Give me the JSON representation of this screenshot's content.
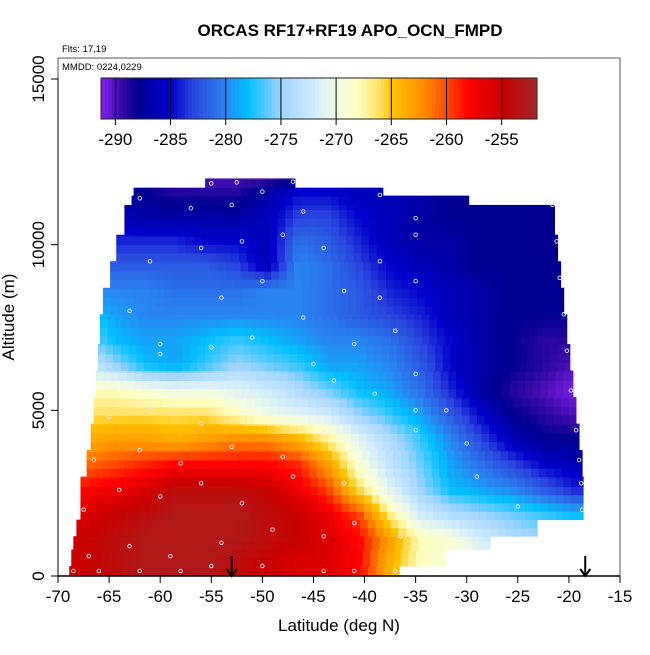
{
  "chart_data": {
    "type": "heatmap",
    "title": "ORCAS RF17+RF19 APO_OCN_FMPD",
    "flights_label": "Flts: 17,19",
    "dates_label": "MMDD: 0224,0229",
    "xlabel": "Latitude (deg N)",
    "ylabel": "Altitude (m)",
    "xlim": [
      -70,
      -15
    ],
    "ylim": [
      0,
      15000
    ],
    "xticks": [
      -70,
      -65,
      -60,
      -55,
      -50,
      -45,
      -40,
      -35,
      -30,
      -25,
      -20,
      -15
    ],
    "xtick_labels": [
      "-70",
      "-65",
      "-60",
      "-55",
      "-50",
      "-45",
      "-40",
      "-35",
      "-30",
      "-25",
      "-20",
      "-15"
    ],
    "yticks": [
      0,
      5000,
      10000,
      15000
    ],
    "ytick_labels": [
      "0",
      "5000",
      "10000",
      "15000"
    ],
    "colorbar": {
      "range": [
        -291.3,
        -251.8
      ],
      "ticks": [
        -290,
        -285,
        -280,
        -275,
        -270,
        -265,
        -260,
        -255
      ],
      "tick_labels": [
        "-290",
        "-285",
        "-280",
        "-275",
        "-270",
        "-265",
        "-260",
        "-255"
      ],
      "stops": [
        [
          -291,
          "#7b1fe8"
        ],
        [
          -289.5,
          "#3a0aa8"
        ],
        [
          -288,
          "#000090"
        ],
        [
          -285,
          "#0000cc"
        ],
        [
          -283,
          "#2a45dd"
        ],
        [
          -280,
          "#2a85f0"
        ],
        [
          -278,
          "#00bfff"
        ],
        [
          -275,
          "#a0d4ff"
        ],
        [
          -272,
          "#d0ecfc"
        ],
        [
          -270,
          "#f0fbe8"
        ],
        [
          -268,
          "#ffffc0"
        ],
        [
          -266,
          "#ffe060"
        ],
        [
          -265,
          "#ffc400"
        ],
        [
          -262,
          "#ff8c00"
        ],
        [
          -260,
          "#ff4a00"
        ],
        [
          -258,
          "#ff0000"
        ],
        [
          -255,
          "#c80000"
        ],
        [
          -252,
          "#a52525"
        ]
      ]
    },
    "grid_lats": [
      -67.5,
      -64.5,
      -61.5,
      -58.5,
      -55.5,
      -52.5,
      -49.5,
      -46.5,
      -43.5,
      -40.5,
      -37.5,
      -34.5,
      -31.5,
      -28.5,
      -25.5,
      -22.5,
      -19.5
    ],
    "grid_alts": [
      375,
      1125,
      1875,
      2625,
      3375,
      4125,
      4875,
      5625,
      6375,
      7125,
      7875,
      8625,
      9375,
      10125,
      10875,
      11625,
      12000
    ],
    "values": [
      [
        -255,
        -254,
        -253,
        -253,
        -253,
        -254,
        -255,
        -256,
        -256,
        -258,
        -264,
        -268,
        -269,
        -270,
        -271,
        -272,
        -273
      ],
      [
        -255,
        -254,
        -253,
        -253,
        -253,
        -253,
        -254,
        -255,
        -256,
        -258,
        -263,
        -268,
        -269,
        -272,
        -274,
        -275,
        -276
      ],
      [
        -256,
        -255,
        -254,
        -253,
        -253,
        -253,
        -254,
        -255,
        -257,
        -260,
        -267,
        -272,
        -274,
        -275,
        -276,
        -277,
        -278
      ],
      [
        -258,
        -257,
        -256,
        -254,
        -254,
        -254,
        -255,
        -257,
        -260,
        -266,
        -271,
        -275,
        -278,
        -279,
        -280,
        -282,
        -284
      ],
      [
        -261,
        -260,
        -259,
        -258,
        -258,
        -258,
        -258,
        -259,
        -263,
        -269,
        -273,
        -276,
        -279,
        -281,
        -283,
        -285,
        -286
      ],
      [
        -264,
        -263,
        -263,
        -264,
        -263,
        -262,
        -262,
        -264,
        -267,
        -271,
        -274,
        -277,
        -280,
        -283,
        -286,
        -288,
        -288
      ],
      [
        -266,
        -266,
        -266,
        -266,
        -266,
        -268,
        -270,
        -271,
        -272,
        -275,
        -277,
        -279,
        -282,
        -285,
        -288,
        -289,
        -290
      ],
      [
        -268,
        -268,
        -269,
        -270,
        -270,
        -271,
        -272,
        -274,
        -276,
        -278,
        -279,
        -281,
        -284,
        -287,
        -289,
        -290,
        -291
      ],
      [
        -272,
        -275,
        -278,
        -279,
        -277,
        -275,
        -276,
        -277,
        -279,
        -279,
        -280,
        -282,
        -285,
        -287,
        -288,
        -289,
        -290
      ],
      [
        -275,
        -278,
        -279,
        -279,
        -278,
        -277,
        -278,
        -279,
        -280,
        -280,
        -281,
        -283,
        -285,
        -287,
        -288,
        -289,
        -289
      ],
      [
        -277,
        -279,
        -280,
        -280,
        -280,
        -280,
        -280,
        -280,
        -281,
        -282,
        -283,
        -284,
        -286,
        -287,
        -288,
        -288,
        -288
      ],
      [
        -280,
        -280,
        -280,
        -281,
        -281,
        -281,
        -280,
        -280,
        -281,
        -282,
        -284,
        -285,
        -286,
        -287,
        -288,
        -288,
        -288
      ],
      [
        -281,
        -282,
        -282,
        -282,
        -282,
        -283,
        -286,
        -280,
        -281,
        -283,
        -285,
        -286,
        -287,
        -288,
        -288,
        -288,
        -288
      ],
      [
        -282,
        -284,
        -284,
        -284,
        -285,
        -285,
        -286,
        -281,
        -282,
        -284,
        -286,
        -287,
        -287,
        -288,
        -288,
        -288,
        -288
      ],
      [
        -284,
        -286,
        -287,
        -287,
        -287,
        -287,
        -286,
        -283,
        -283,
        -285,
        -286,
        -287,
        -288,
        -288,
        -288,
        -288,
        -288
      ],
      [
        -287,
        -288,
        -288,
        -289,
        -289,
        -289,
        -287,
        -285,
        -285,
        -286,
        -286,
        -287,
        -288,
        -288,
        -288,
        -288,
        -288
      ],
      [
        -289,
        -290,
        -290,
        -290,
        -290,
        -290,
        -290,
        -289,
        -288,
        -288,
        -288,
        -288,
        -288,
        -288,
        -288,
        -288,
        -288
      ]
    ],
    "coverage": [
      [
        0,
        300,
        -68.9,
        -36.6
      ],
      [
        300,
        800,
        -68.7,
        -32.1
      ],
      [
        800,
        1200,
        -68.5,
        -27.7
      ],
      [
        1200,
        1700,
        -68.2,
        -23.1
      ],
      [
        1700,
        3000,
        -67.8,
        -18.6
      ],
      [
        3000,
        3800,
        -67.2,
        -18.7
      ],
      [
        3800,
        4600,
        -66.8,
        -19.0
      ],
      [
        4600,
        5400,
        -66.5,
        -19.3
      ],
      [
        5400,
        6200,
        -66.3,
        -19.6
      ],
      [
        6200,
        7000,
        -66.1,
        -19.9
      ],
      [
        7000,
        7900,
        -65.9,
        -20.2
      ],
      [
        7900,
        8700,
        -65.6,
        -20.5
      ],
      [
        8700,
        9500,
        -64.9,
        -20.8
      ],
      [
        9500,
        10300,
        -64.3,
        -21.1
      ],
      [
        10300,
        11200,
        -63.5,
        -21.4
      ],
      [
        11200,
        11480,
        -62.8,
        -29.8
      ],
      [
        11480,
        11720,
        -62.6,
        -38.2
      ],
      [
        11720,
        12000,
        -55.6,
        -46.8
      ]
    ],
    "observations": [
      [
        -68.5,
        150
      ],
      [
        -66,
        150
      ],
      [
        -62,
        150
      ],
      [
        -58,
        150
      ],
      [
        -55,
        300
      ],
      [
        -50,
        300
      ],
      [
        -44,
        150
      ],
      [
        -41,
        150
      ],
      [
        -37,
        150
      ],
      [
        -67,
        600
      ],
      [
        -63,
        900
      ],
      [
        -59,
        600
      ],
      [
        -54,
        1000
      ],
      [
        -49,
        1400
      ],
      [
        -44,
        1200
      ],
      [
        -41,
        1600
      ],
      [
        -36.5,
        1200
      ],
      [
        -67.5,
        2000
      ],
      [
        -64,
        2600
      ],
      [
        -60,
        2400
      ],
      [
        -56,
        2800
      ],
      [
        -52,
        2200
      ],
      [
        -47,
        3000
      ],
      [
        -42,
        2800
      ],
      [
        -37,
        2500
      ],
      [
        -66.5,
        3500
      ],
      [
        -62,
        3800
      ],
      [
        -58,
        3400
      ],
      [
        -53,
        3900
      ],
      [
        -48,
        3600
      ],
      [
        -44,
        4300
      ],
      [
        -39,
        3800
      ],
      [
        -35,
        4400
      ],
      [
        -65,
        4800
      ],
      [
        -61,
        5100
      ],
      [
        -56,
        4600
      ],
      [
        -52,
        5400
      ],
      [
        -47,
        5000
      ],
      [
        -43,
        5900
      ],
      [
        -39,
        5500
      ],
      [
        -35,
        5000
      ],
      [
        -64.5,
        6000
      ],
      [
        -60,
        6700
      ],
      [
        -55,
        6900
      ],
      [
        -51,
        7200
      ],
      [
        -45,
        6400
      ],
      [
        -41,
        7000
      ],
      [
        -37,
        7400
      ],
      [
        -35,
        6100
      ],
      [
        -63,
        8000
      ],
      [
        -60,
        7000
      ],
      [
        -54,
        8400
      ],
      [
        -50,
        8900
      ],
      [
        -46,
        7800
      ],
      [
        -42,
        8600
      ],
      [
        -38.5,
        8400
      ],
      [
        -35,
        8900
      ],
      [
        -61,
        9500
      ],
      [
        -56,
        9900
      ],
      [
        -52,
        10100
      ],
      [
        -48,
        10300
      ],
      [
        -44,
        9900
      ],
      [
        -38.5,
        9500
      ],
      [
        -35,
        10300
      ],
      [
        -62,
        11400
      ],
      [
        -57,
        11100
      ],
      [
        -53,
        11200
      ],
      [
        -50,
        11600
      ],
      [
        -46,
        11000
      ],
      [
        -38.5,
        11500
      ],
      [
        -35,
        10800
      ],
      [
        -55,
        11850
      ],
      [
        -52.5,
        11880
      ],
      [
        -47,
        11900
      ],
      [
        -21.6,
        11200
      ],
      [
        -21.2,
        10100
      ],
      [
        -20.9,
        9000
      ],
      [
        -20.5,
        7900
      ],
      [
        -20.2,
        6800
      ],
      [
        -19.8,
        5600
      ],
      [
        -19.3,
        4400
      ],
      [
        -19,
        3500
      ],
      [
        -18.8,
        2800
      ],
      [
        -18.7,
        2000
      ],
      [
        -25,
        2100
      ],
      [
        -29,
        3000
      ],
      [
        -30,
        4000
      ],
      [
        -32,
        5000
      ]
    ],
    "markers": [
      {
        "lat": -53.0,
        "symbol": "down-arrow"
      },
      {
        "lat": -18.4,
        "symbol": "down-arrow"
      }
    ]
  }
}
